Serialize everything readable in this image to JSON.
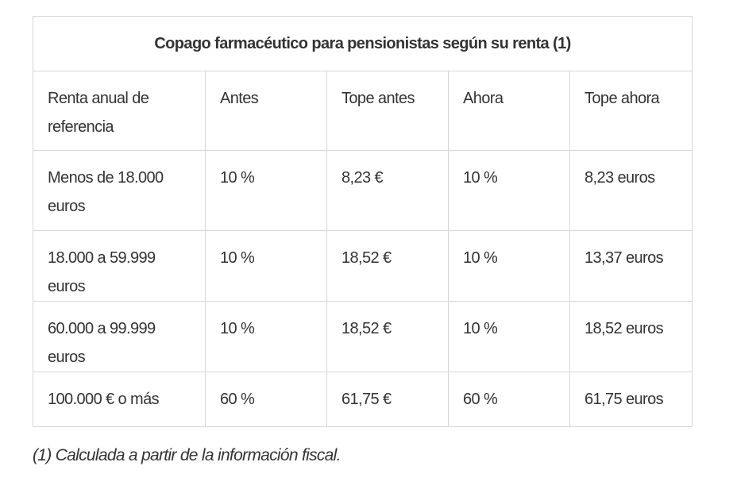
{
  "table": {
    "caption": "Copago farmacéutico para pensionistas según su renta (1)",
    "headers": [
      "Renta anual de referencia",
      "Antes",
      "Tope antes",
      "Ahora",
      "Tope ahora"
    ],
    "rows": [
      [
        "Menos de 18.000 euros",
        "10 %",
        "8,23 €",
        "10 %",
        "8,23 euros"
      ],
      [
        "18.000 a 59.999 euros",
        "10 %",
        "18,52 €",
        "10 %",
        "13,37 euros"
      ],
      [
        "60.000 a 99.999 euros",
        "10 %",
        "18,52 €",
        "10 %",
        "18,52 euros"
      ],
      [
        "100.000 € o más",
        "60 %",
        "61,75 €",
        "60 %",
        "61,75 euros"
      ]
    ]
  },
  "footnote": "(1) Calculada a partir de la información fiscal."
}
